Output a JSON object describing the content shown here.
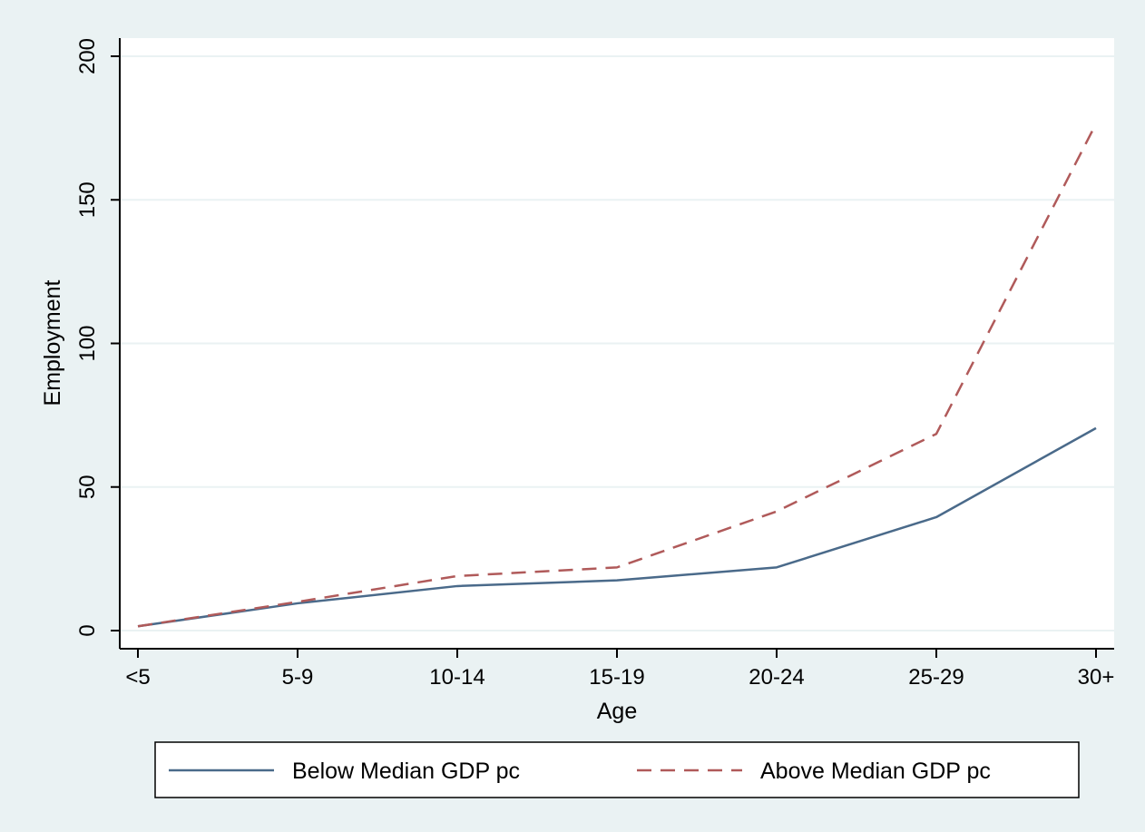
{
  "chart_data": {
    "type": "line",
    "title": "",
    "xlabel": "Age",
    "ylabel": "Employment",
    "categories": [
      "<5",
      "5-9",
      "10-14",
      "15-19",
      "20-24",
      "25-29",
      "30+"
    ],
    "yticks": [
      "0",
      "50",
      "100",
      "150",
      "200"
    ],
    "ylim": [
      0,
      200
    ],
    "grid": true,
    "legend_position": "bottom",
    "series": [
      {
        "name": "Below Median GDP pc",
        "values": [
          1.5,
          9.5,
          15.5,
          17.5,
          22,
          39.5,
          70.5
        ],
        "color": "#4a6a8a",
        "style": "solid"
      },
      {
        "name": "Above Median GDP pc",
        "values": [
          1.5,
          10,
          19,
          22,
          41.5,
          68.5,
          176.5
        ],
        "color": "#b05a5a",
        "style": "dashed"
      }
    ]
  },
  "colors": {
    "outer_background": "#eaf2f3",
    "plot_background": "#ffffff",
    "grid": "#eaf2f3",
    "axis": "#000000"
  }
}
